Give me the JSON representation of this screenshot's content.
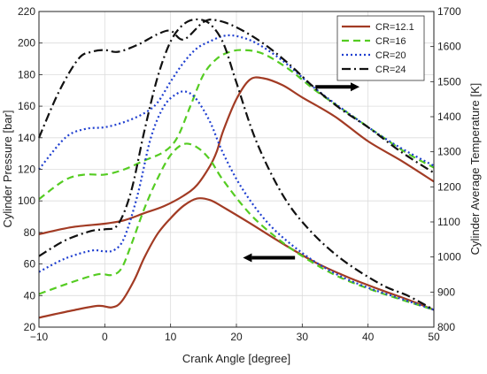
{
  "chart_data": {
    "type": "line",
    "xlabel": "Crank Angle [degree]",
    "ylabel_left": "Cylinder Pressure [bar]",
    "ylabel_right": "Cylinder Average Temperature [K]",
    "xlim": [
      -10,
      50
    ],
    "ylim_left": [
      20,
      220
    ],
    "ylim_right": [
      800,
      1700
    ],
    "x_ticks": [
      -10,
      0,
      10,
      20,
      30,
      40,
      50
    ],
    "y_left_ticks": [
      20,
      40,
      60,
      80,
      100,
      120,
      140,
      160,
      180,
      200,
      220
    ],
    "y_right_ticks": [
      800,
      900,
      1000,
      1100,
      1200,
      1300,
      1400,
      1500,
      1600,
      1700
    ],
    "x_tick_labels": [
      "−10",
      "0",
      "10",
      "20",
      "30",
      "40",
      "50"
    ],
    "y_left_tick_labels": [
      "20",
      "40",
      "60",
      "80",
      "100",
      "120",
      "140",
      "160",
      "180",
      "200",
      "220"
    ],
    "y_right_tick_labels": [
      "800",
      "900",
      "1000",
      "1100",
      "1200",
      "1300",
      "1400",
      "1500",
      "1600",
      "1700"
    ],
    "grid": true,
    "legend_position": "top-right",
    "series": [
      {
        "name": "CR=12.1",
        "color": "#a23b24",
        "dash": "solid",
        "pressure": [
          [
            -10,
            26
          ],
          [
            -5,
            30.5
          ],
          [
            -1,
            33.5
          ],
          [
            1,
            32.5
          ],
          [
            2.5,
            36
          ],
          [
            4.5,
            50
          ],
          [
            6,
            64
          ],
          [
            8,
            79
          ],
          [
            10,
            89
          ],
          [
            12,
            97
          ],
          [
            14,
            101.5
          ],
          [
            16,
            100.5
          ],
          [
            18,
            96
          ],
          [
            22,
            86
          ],
          [
            27,
            73
          ],
          [
            32,
            61
          ],
          [
            37,
            51.5
          ],
          [
            42,
            43.5
          ],
          [
            46,
            37.5
          ],
          [
            50,
            31
          ]
        ],
        "temperature": [
          [
            -10,
            1065
          ],
          [
            -5,
            1085
          ],
          [
            0,
            1095
          ],
          [
            3,
            1105
          ],
          [
            6,
            1125
          ],
          [
            9,
            1145
          ],
          [
            12,
            1175
          ],
          [
            14,
            1205
          ],
          [
            16,
            1260
          ],
          [
            17,
            1300
          ],
          [
            18,
            1360
          ],
          [
            20,
            1450
          ],
          [
            22,
            1505
          ],
          [
            24,
            1510
          ],
          [
            27,
            1490
          ],
          [
            30,
            1455
          ],
          [
            35,
            1400
          ],
          [
            40,
            1330
          ],
          [
            45,
            1275
          ],
          [
            50,
            1215
          ]
        ]
      },
      {
        "name": "CR=16",
        "color": "#55cc22",
        "dash": "8,5",
        "pressure": [
          [
            -10,
            41
          ],
          [
            -5,
            48.5
          ],
          [
            -1,
            53.5
          ],
          [
            1,
            53
          ],
          [
            2.5,
            57
          ],
          [
            4,
            72
          ],
          [
            6,
            95
          ],
          [
            8,
            114
          ],
          [
            10,
            129
          ],
          [
            12,
            136
          ],
          [
            14,
            134
          ],
          [
            16,
            126
          ],
          [
            18,
            113
          ],
          [
            22,
            92
          ],
          [
            26,
            77
          ],
          [
            30,
            65
          ],
          [
            35,
            53
          ],
          [
            40,
            44.5
          ],
          [
            45,
            37.5
          ],
          [
            50,
            31
          ]
        ],
        "temperature": [
          [
            -10,
            1165
          ],
          [
            -6,
            1220
          ],
          [
            -3,
            1235
          ],
          [
            0,
            1235
          ],
          [
            3,
            1250
          ],
          [
            6,
            1275
          ],
          [
            9,
            1300
          ],
          [
            11,
            1340
          ],
          [
            13,
            1430
          ],
          [
            15,
            1520
          ],
          [
            17,
            1565
          ],
          [
            19,
            1585
          ],
          [
            21,
            1590
          ],
          [
            24,
            1580
          ],
          [
            28,
            1535
          ],
          [
            32,
            1475
          ],
          [
            37,
            1410
          ],
          [
            42,
            1345
          ],
          [
            46,
            1295
          ],
          [
            50,
            1255
          ]
        ]
      },
      {
        "name": "CR=20",
        "color": "#1f3fd0",
        "dash": "2,3",
        "pressure": [
          [
            -10,
            55
          ],
          [
            -6,
            63.5
          ],
          [
            -2,
            68.5
          ],
          [
            0,
            68
          ],
          [
            1.5,
            69
          ],
          [
            3,
            77
          ],
          [
            5,
            104
          ],
          [
            7,
            140
          ],
          [
            9,
            160
          ],
          [
            11,
            168
          ],
          [
            12.5,
            169
          ],
          [
            14,
            164
          ],
          [
            16,
            150
          ],
          [
            18,
            130
          ],
          [
            21,
            107
          ],
          [
            25,
            85
          ],
          [
            30,
            67
          ],
          [
            35,
            54
          ],
          [
            40,
            45
          ],
          [
            45,
            38
          ],
          [
            50,
            31
          ]
        ],
        "temperature": [
          [
            -10,
            1250
          ],
          [
            -6,
            1340
          ],
          [
            -3,
            1365
          ],
          [
            0,
            1370
          ],
          [
            3,
            1385
          ],
          [
            6,
            1410
          ],
          [
            8,
            1440
          ],
          [
            10,
            1500
          ],
          [
            12,
            1555
          ],
          [
            14,
            1595
          ],
          [
            16,
            1615
          ],
          [
            18,
            1630
          ],
          [
            20,
            1630
          ],
          [
            23,
            1610
          ],
          [
            27,
            1560
          ],
          [
            32,
            1480
          ],
          [
            37,
            1410
          ],
          [
            42,
            1345
          ],
          [
            46,
            1300
          ],
          [
            50,
            1260
          ]
        ]
      },
      {
        "name": "CR=24",
        "color": "#111111",
        "dash": "10,4,2,4",
        "pressure": [
          [
            -10,
            65
          ],
          [
            -6,
            75
          ],
          [
            -2,
            81
          ],
          [
            0,
            82
          ],
          [
            2,
            85
          ],
          [
            4,
            106
          ],
          [
            6,
            144
          ],
          [
            8,
            178
          ],
          [
            10,
            201
          ],
          [
            12,
            212
          ],
          [
            14,
            215
          ],
          [
            16,
            212
          ],
          [
            18,
            200
          ],
          [
            20,
            175
          ],
          [
            23,
            138
          ],
          [
            27,
            104
          ],
          [
            31,
            82
          ],
          [
            36,
            63
          ],
          [
            42,
            47
          ],
          [
            46,
            40
          ],
          [
            50,
            31
          ]
        ],
        "temperature": [
          [
            -10,
            1340
          ],
          [
            -7,
            1470
          ],
          [
            -4,
            1565
          ],
          [
            -2,
            1585
          ],
          [
            0,
            1590
          ],
          [
            2,
            1585
          ],
          [
            5,
            1605
          ],
          [
            8,
            1635
          ],
          [
            10,
            1645
          ],
          [
            12,
            1620
          ],
          [
            15,
            1670
          ],
          [
            17,
            1675
          ],
          [
            20,
            1655
          ],
          [
            24,
            1610
          ],
          [
            28,
            1550
          ],
          [
            32,
            1480
          ],
          [
            36,
            1420
          ],
          [
            40,
            1370
          ],
          [
            45,
            1300
          ],
          [
            50,
            1240
          ]
        ]
      }
    ],
    "arrows": [
      {
        "direction": "right",
        "axis": "temperature",
        "from": [
          32,
          1485
        ],
        "to": [
          38.7,
          1485
        ]
      },
      {
        "direction": "left",
        "axis": "pressure",
        "from": [
          28.9,
          64
        ],
        "to": [
          21,
          64
        ]
      }
    ]
  }
}
